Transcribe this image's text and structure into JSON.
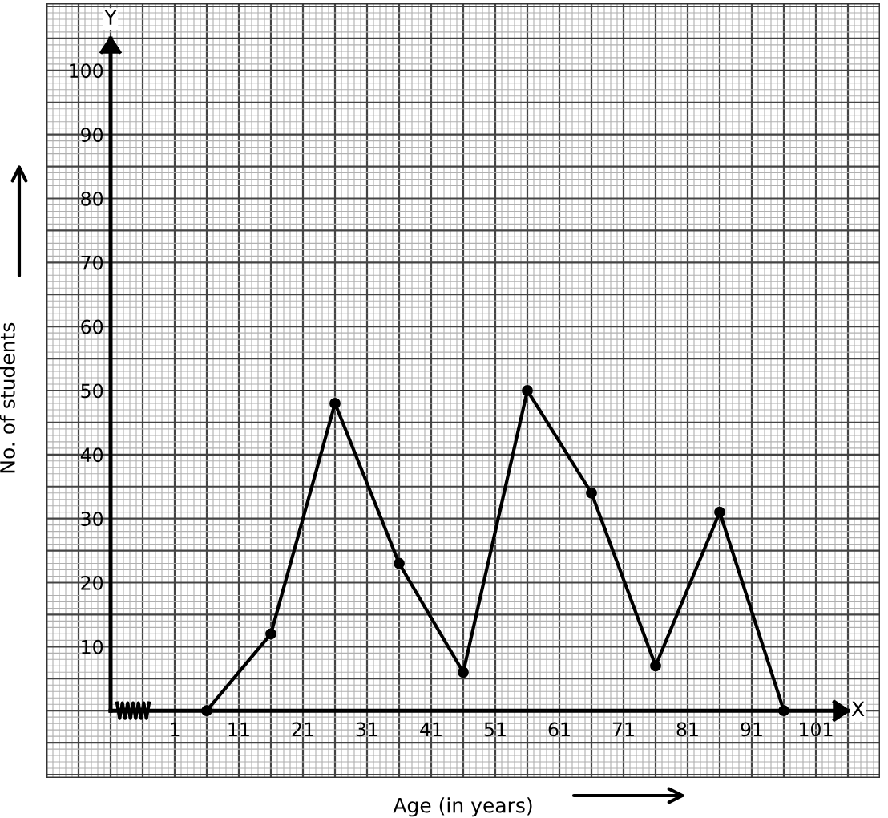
{
  "chart_data": {
    "type": "line",
    "xlabel": "Age (in years)",
    "ylabel": "No. of students",
    "annotations": [
      "X",
      "Y"
    ],
    "x": [
      6,
      16,
      26,
      36,
      46,
      56,
      66,
      76,
      86,
      96
    ],
    "series": [
      {
        "color": "#000000",
        "values": [
          0,
          12,
          48,
          23,
          6,
          50,
          34,
          7,
          31,
          0
        ]
      }
    ],
    "xlim": [
      -19,
      111
    ],
    "ylim": [
      -10.5,
      110.5
    ],
    "xticks": [
      1,
      11,
      21,
      31,
      41,
      51,
      61,
      71,
      81,
      91,
      101
    ],
    "yticks": [
      10,
      20,
      30,
      40,
      50,
      60,
      70,
      80,
      90,
      100
    ],
    "grid": true,
    "marker": "circle",
    "line_style": "solid",
    "legend": false
  }
}
